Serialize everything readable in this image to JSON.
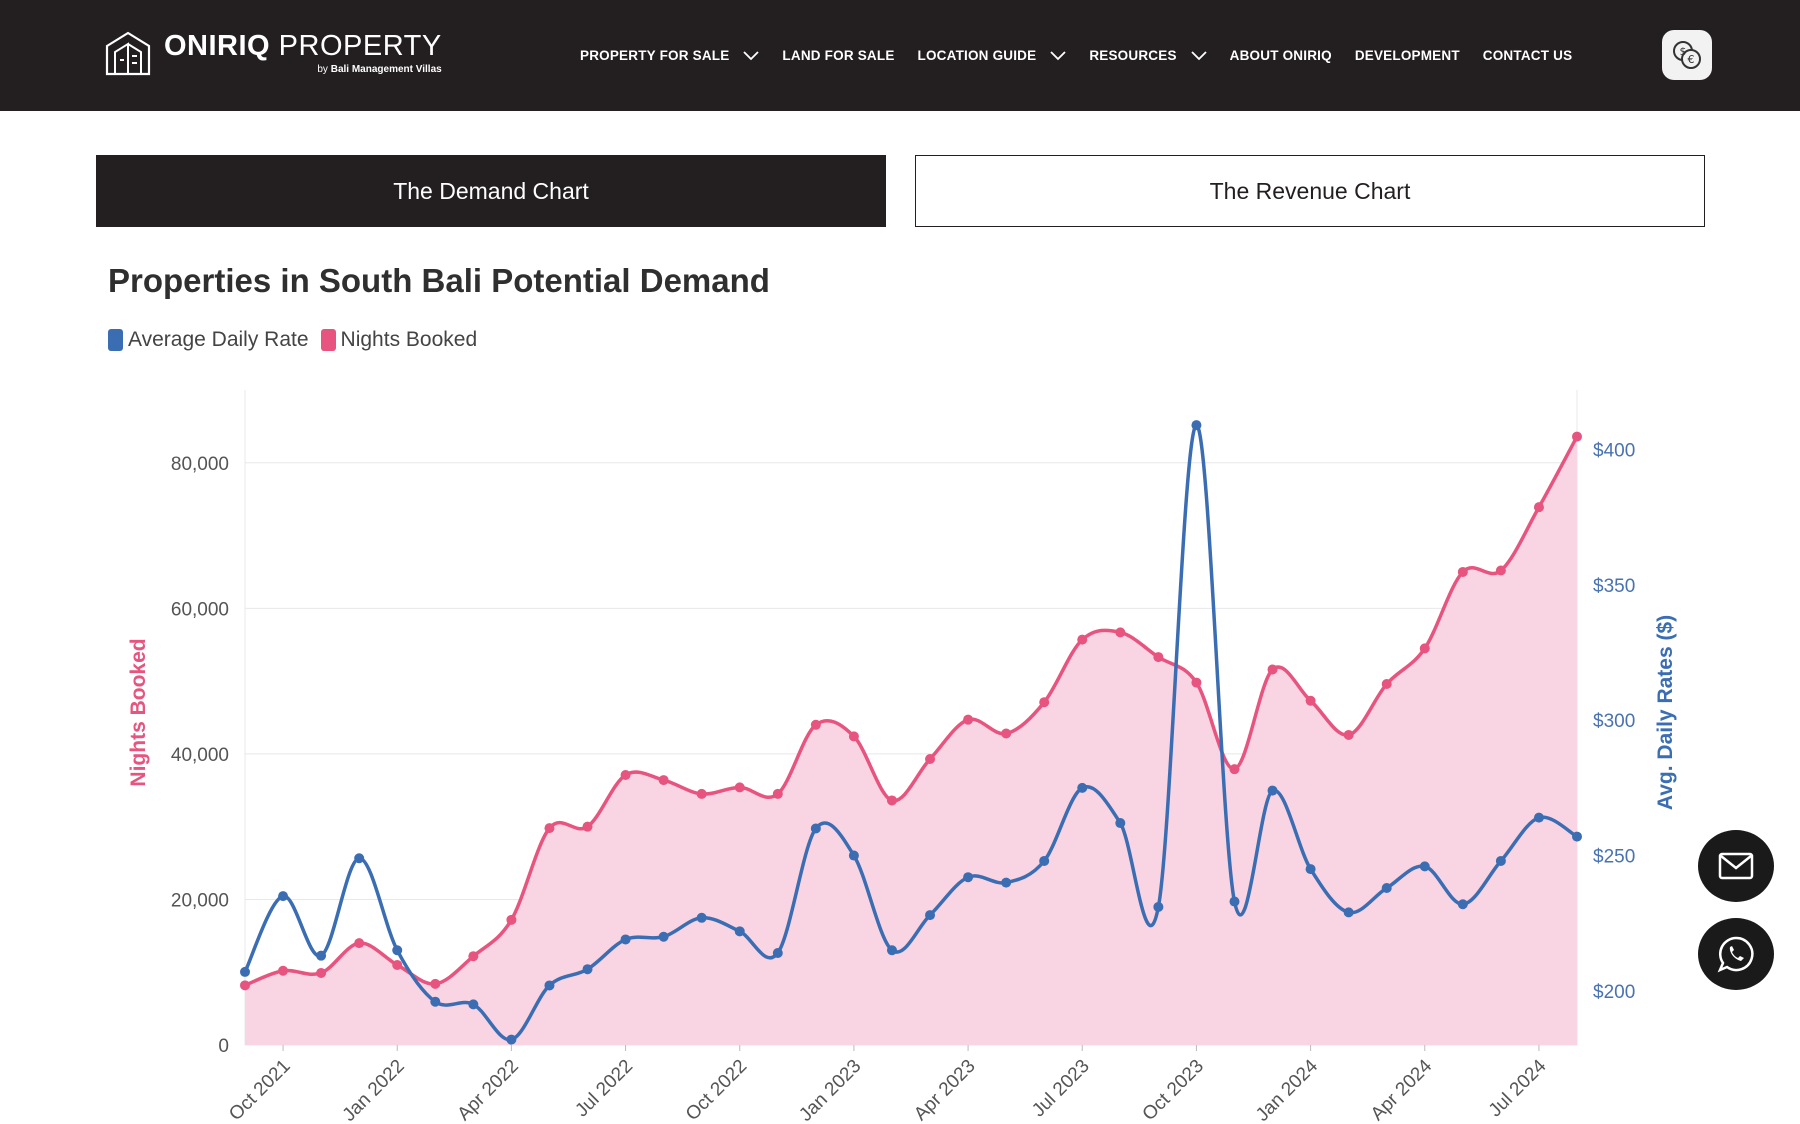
{
  "header": {
    "logo": {
      "brand_bold": "ONIRIQ",
      "brand_light": " PROPERTY",
      "sub_prefix": "by ",
      "sub_bold": "Bali Management Villas"
    },
    "nav": [
      {
        "label": "PROPERTY FOR SALE",
        "has_dropdown": true
      },
      {
        "label": "LAND FOR SALE",
        "has_dropdown": false
      },
      {
        "label": "LOCATION GUIDE",
        "has_dropdown": true
      },
      {
        "label": "RESOURCES",
        "has_dropdown": true
      },
      {
        "label": "ABOUT ONIRIQ",
        "has_dropdown": false
      },
      {
        "label": "DEVELOPMENT",
        "has_dropdown": false
      },
      {
        "label": "CONTACT US",
        "has_dropdown": false
      }
    ],
    "currency_icon": "currency-exchange-icon"
  },
  "tabs": [
    {
      "label": "The Demand Chart",
      "active": true
    },
    {
      "label": "The Revenue Chart",
      "active": false
    }
  ],
  "floating": {
    "mail_icon": "mail-icon",
    "whatsapp_icon": "whatsapp-icon"
  },
  "chart_data": {
    "type": "line",
    "title": "Properties in South Bali Potential Demand",
    "legend": [
      {
        "name": "Average Daily Rate",
        "color": "#3b6db3"
      },
      {
        "name": "Nights Booked",
        "color": "#e6547f"
      }
    ],
    "colors": {
      "adr": "#3b6db3",
      "nights": "#e6547f",
      "fill": "#f9d4e2"
    },
    "x": [
      "Sep 2021",
      "Oct 2021",
      "Nov 2021",
      "Dec 2021",
      "Jan 2022",
      "Feb 2022",
      "Mar 2022",
      "Apr 2022",
      "May 2022",
      "Jun 2022",
      "Jul 2022",
      "Aug 2022",
      "Sep 2022",
      "Oct 2022",
      "Nov 2022",
      "Dec 2022",
      "Jan 2023",
      "Feb 2023",
      "Mar 2023",
      "Apr 2023",
      "May 2023",
      "Jun 2023",
      "Jul 2023",
      "Aug 2023",
      "Sep 2023",
      "Oct 2023",
      "Nov 2023",
      "Dec 2023",
      "Jan 2024",
      "Feb 2024",
      "Mar 2024",
      "Apr 2024",
      "May 2024",
      "Jun 2024",
      "Jul 2024",
      "Aug 2024"
    ],
    "x_tick_labels": [
      "Oct 2021",
      "Jan 2022",
      "Apr 2022",
      "Jul 2022",
      "Oct 2022",
      "Jan 2023",
      "Apr 2023",
      "Jul 2023",
      "Oct 2023",
      "Jan 2024",
      "Apr 2024",
      "Jul 2024"
    ],
    "series": [
      {
        "name": "Nights Booked",
        "axis": "left",
        "fill": true,
        "values": [
          8200,
          10200,
          9900,
          14000,
          11000,
          8400,
          12200,
          17200,
          29800,
          30000,
          37100,
          36400,
          34500,
          35400,
          34500,
          44000,
          42400,
          33600,
          39300,
          44700,
          42800,
          47100,
          55700,
          56700,
          53300,
          49800,
          37900,
          51600,
          47300,
          42600,
          49600,
          54500,
          65000,
          65200,
          73900,
          83600
        ]
      },
      {
        "name": "Average Daily Rate",
        "axis": "right",
        "fill": false,
        "values": [
          207,
          235,
          213,
          249,
          215,
          196,
          195,
          182,
          202,
          208,
          219,
          220,
          227,
          222,
          214,
          260,
          250,
          215,
          228,
          242,
          240,
          248,
          275,
          262,
          231,
          409,
          233,
          274,
          245,
          229,
          238,
          246,
          232,
          248,
          264,
          257
        ]
      }
    ],
    "y_left": {
      "label": "Nights Booked",
      "min": 0,
      "max": 90000,
      "ticks": [
        0,
        20000,
        40000,
        60000,
        80000
      ],
      "tick_labels": [
        "0",
        "20,000",
        "40,000",
        "60,000",
        "80,000"
      ]
    },
    "y_right": {
      "label": "Avg. Daily Rates ($)",
      "min": 180,
      "max": 422,
      "ticks": [
        200,
        250,
        300,
        350,
        400
      ],
      "tick_labels": [
        "$200",
        "$250",
        "$300",
        "$350",
        "$400"
      ]
    },
    "grid": true,
    "legend_position": "top-left"
  }
}
